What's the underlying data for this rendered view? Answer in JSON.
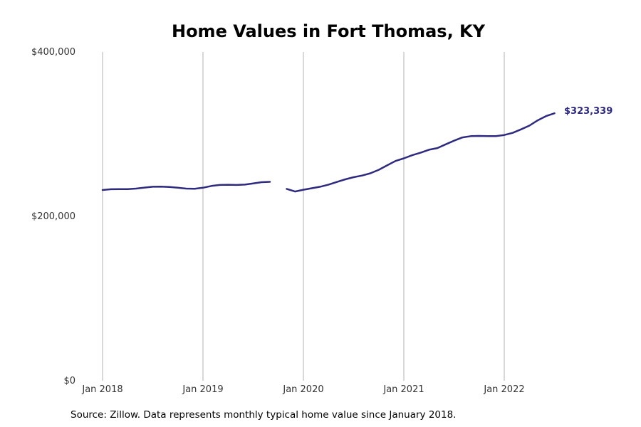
{
  "chart_data": {
    "type": "line",
    "title": "Home Values in Fort Thomas, KY",
    "xlabel": "",
    "ylabel": "",
    "ylim": [
      0,
      400000
    ],
    "yticks": [
      {
        "value": 0,
        "label": "$0"
      },
      {
        "value": 200000,
        "label": "$200,000"
      },
      {
        "value": 400000,
        "label": "$400,000"
      }
    ],
    "xticks": [
      {
        "value": "2018-01",
        "label": "Jan 2018"
      },
      {
        "value": "2019-01",
        "label": "Jan 2019"
      },
      {
        "value": "2020-01",
        "label": "Jan 2020"
      },
      {
        "value": "2021-01",
        "label": "Jan 2021"
      },
      {
        "value": "2022-01",
        "label": "Jan 2022"
      }
    ],
    "grid": "vertical",
    "legend": "none",
    "color": "#2e2a7f",
    "end_label": "$323,339",
    "series": [
      {
        "values": [
          [
            "2018-01",
            232000
          ],
          [
            "2018-02",
            233000
          ],
          [
            "2018-03",
            233200
          ],
          [
            "2018-04",
            233200
          ],
          [
            "2018-05",
            233800
          ],
          [
            "2018-06",
            235000
          ],
          [
            "2018-07",
            236000
          ],
          [
            "2018-08",
            236200
          ],
          [
            "2018-09",
            235800
          ],
          [
            "2018-10",
            234800
          ],
          [
            "2018-11",
            233800
          ],
          [
            "2018-12",
            233600
          ],
          [
            "2019-01",
            234800
          ],
          [
            "2019-02",
            237000
          ],
          [
            "2019-03",
            238200
          ],
          [
            "2019-04",
            238400
          ],
          [
            "2019-05",
            238200
          ],
          [
            "2019-06",
            238600
          ],
          [
            "2019-07",
            240000
          ],
          [
            "2019-08",
            241600
          ],
          [
            "2019-09",
            242000
          ],
          [
            "2019-10",
            null
          ],
          [
            "2019-11",
            233400
          ],
          [
            "2019-12",
            230200
          ],
          [
            "2020-01",
            232400
          ],
          [
            "2020-02",
            234200
          ],
          [
            "2020-03",
            236000
          ],
          [
            "2020-04",
            238600
          ],
          [
            "2020-05",
            241800
          ],
          [
            "2020-06",
            245000
          ],
          [
            "2020-07",
            247600
          ],
          [
            "2020-08",
            249600
          ],
          [
            "2020-09",
            252400
          ],
          [
            "2020-10",
            256600
          ],
          [
            "2020-11",
            262000
          ],
          [
            "2020-12",
            267400
          ],
          [
            "2021-01",
            270600
          ],
          [
            "2021-02",
            274400
          ],
          [
            "2021-03",
            277400
          ],
          [
            "2021-04",
            281000
          ],
          [
            "2021-05",
            283000
          ],
          [
            "2021-06",
            287600
          ],
          [
            "2021-07",
            292000
          ],
          [
            "2021-08",
            296000
          ],
          [
            "2021-09",
            297600
          ],
          [
            "2021-10",
            297800
          ],
          [
            "2021-11",
            297600
          ],
          [
            "2021-12",
            297600
          ],
          [
            "2022-01",
            299000
          ],
          [
            "2022-02",
            301600
          ],
          [
            "2022-03",
            305800
          ],
          [
            "2022-04",
            310400
          ],
          [
            "2022-05",
            316800
          ],
          [
            "2022-06",
            322000
          ],
          [
            "2022-07",
            325400
          ]
        ]
      }
    ]
  },
  "source_note": "Source: Zillow. Data represents monthly typical home value since January 2018."
}
